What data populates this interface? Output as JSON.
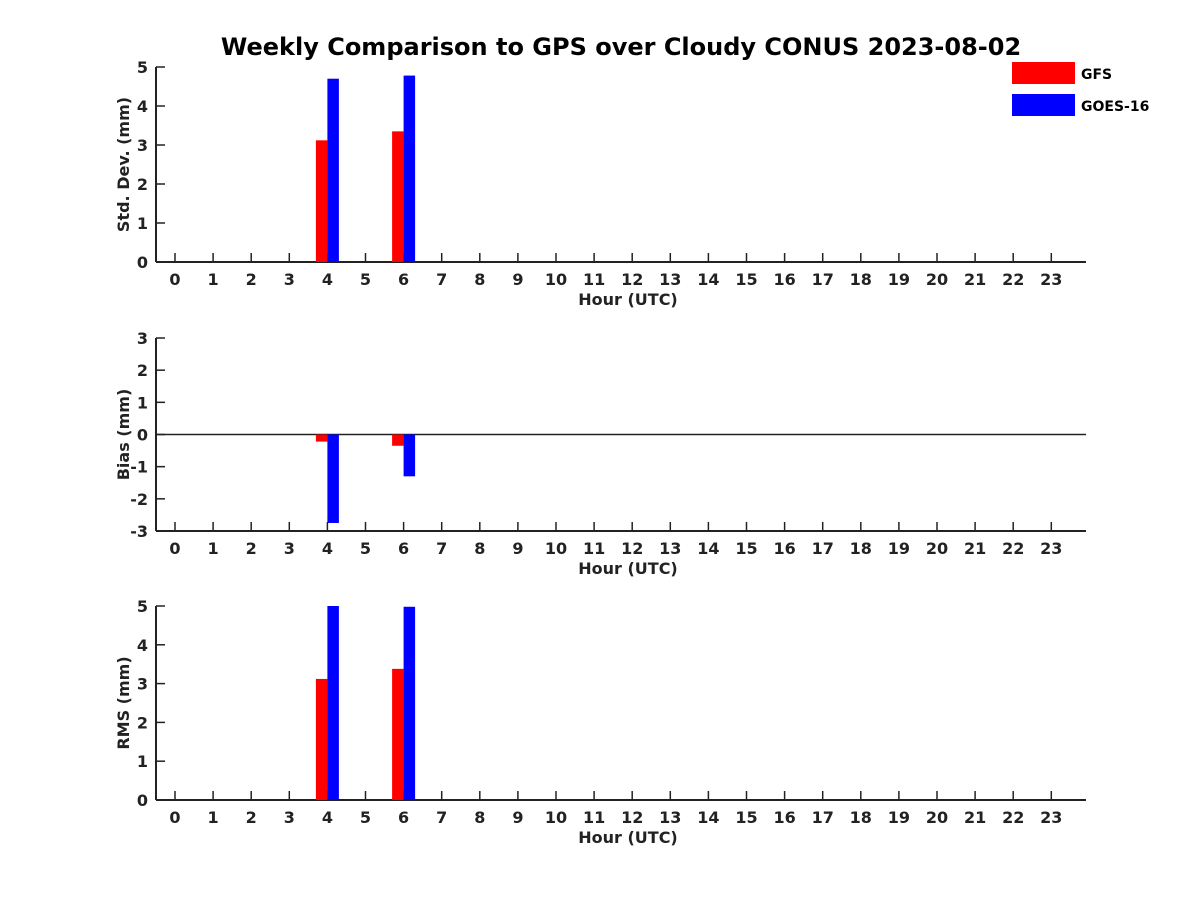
{
  "title": "Weekly Comparison to GPS over Cloudy CONUS 2023-08-02",
  "colors": {
    "GFS": "#ff0000",
    "GOES-16": "#0000ff",
    "axis": "#222222"
  },
  "legend": {
    "placement": "top-right",
    "items": [
      {
        "label": "GFS",
        "color": "#ff0000"
      },
      {
        "label": "GOES-16",
        "color": "#0000ff"
      }
    ]
  },
  "chart_data": [
    {
      "type": "bar",
      "title": "Weekly Comparison to GPS over Cloudy CONUS 2023-08-02",
      "xlabel": "Hour (UTC)",
      "ylabel": "Std. Dev. (mm)",
      "categories": [
        "0",
        "1",
        "2",
        "3",
        "4",
        "5",
        "6",
        "7",
        "8",
        "9",
        "10",
        "11",
        "12",
        "13",
        "14",
        "15",
        "16",
        "17",
        "18",
        "19",
        "20",
        "21",
        "22",
        "23"
      ],
      "yticks": [
        0,
        1,
        2,
        3,
        4,
        5
      ],
      "ylim": [
        0,
        5
      ],
      "grid": false,
      "series": [
        {
          "name": "GFS",
          "color": "#ff0000",
          "values": [
            null,
            null,
            null,
            null,
            3.12,
            null,
            3.35,
            null,
            null,
            null,
            null,
            null,
            null,
            null,
            null,
            null,
            null,
            null,
            null,
            null,
            null,
            null,
            null,
            null
          ]
        },
        {
          "name": "GOES-16",
          "color": "#0000ff",
          "values": [
            null,
            null,
            null,
            null,
            4.7,
            null,
            4.78,
            null,
            null,
            null,
            null,
            null,
            null,
            null,
            null,
            null,
            null,
            null,
            null,
            null,
            null,
            null,
            null,
            null
          ]
        }
      ]
    },
    {
      "type": "bar",
      "xlabel": "Hour (UTC)",
      "ylabel": "Bias (mm)",
      "categories": [
        "0",
        "1",
        "2",
        "3",
        "4",
        "5",
        "6",
        "7",
        "8",
        "9",
        "10",
        "11",
        "12",
        "13",
        "14",
        "15",
        "16",
        "17",
        "18",
        "19",
        "20",
        "21",
        "22",
        "23"
      ],
      "yticks": [
        -3,
        -2,
        -1,
        0,
        1,
        2,
        3
      ],
      "ylim": [
        -3,
        3
      ],
      "zero_line": true,
      "grid": false,
      "series": [
        {
          "name": "GFS",
          "color": "#ff0000",
          "values": [
            null,
            null,
            null,
            null,
            -0.22,
            null,
            -0.35,
            null,
            null,
            null,
            null,
            null,
            null,
            null,
            null,
            null,
            null,
            null,
            null,
            null,
            null,
            null,
            null,
            null
          ]
        },
        {
          "name": "GOES-16",
          "color": "#0000ff",
          "values": [
            null,
            null,
            null,
            null,
            -2.75,
            null,
            -1.3,
            null,
            null,
            null,
            null,
            null,
            null,
            null,
            null,
            null,
            null,
            null,
            null,
            null,
            null,
            null,
            null,
            null
          ]
        }
      ]
    },
    {
      "type": "bar",
      "xlabel": "Hour (UTC)",
      "ylabel": "RMS (mm)",
      "categories": [
        "0",
        "1",
        "2",
        "3",
        "4",
        "5",
        "6",
        "7",
        "8",
        "9",
        "10",
        "11",
        "12",
        "13",
        "14",
        "15",
        "16",
        "17",
        "18",
        "19",
        "20",
        "21",
        "22",
        "23"
      ],
      "yticks": [
        0,
        1,
        2,
        3,
        4,
        5
      ],
      "ylim": [
        0,
        5
      ],
      "grid": false,
      "series": [
        {
          "name": "GFS",
          "color": "#ff0000",
          "values": [
            null,
            null,
            null,
            null,
            3.12,
            null,
            3.38,
            null,
            null,
            null,
            null,
            null,
            null,
            null,
            null,
            null,
            null,
            null,
            null,
            null,
            null,
            null,
            null,
            null
          ]
        },
        {
          "name": "GOES-16",
          "color": "#0000ff",
          "values": [
            null,
            null,
            null,
            null,
            5.0,
            null,
            4.98,
            null,
            null,
            null,
            null,
            null,
            null,
            null,
            null,
            null,
            null,
            null,
            null,
            null,
            null,
            null,
            null,
            null
          ]
        }
      ]
    }
  ]
}
